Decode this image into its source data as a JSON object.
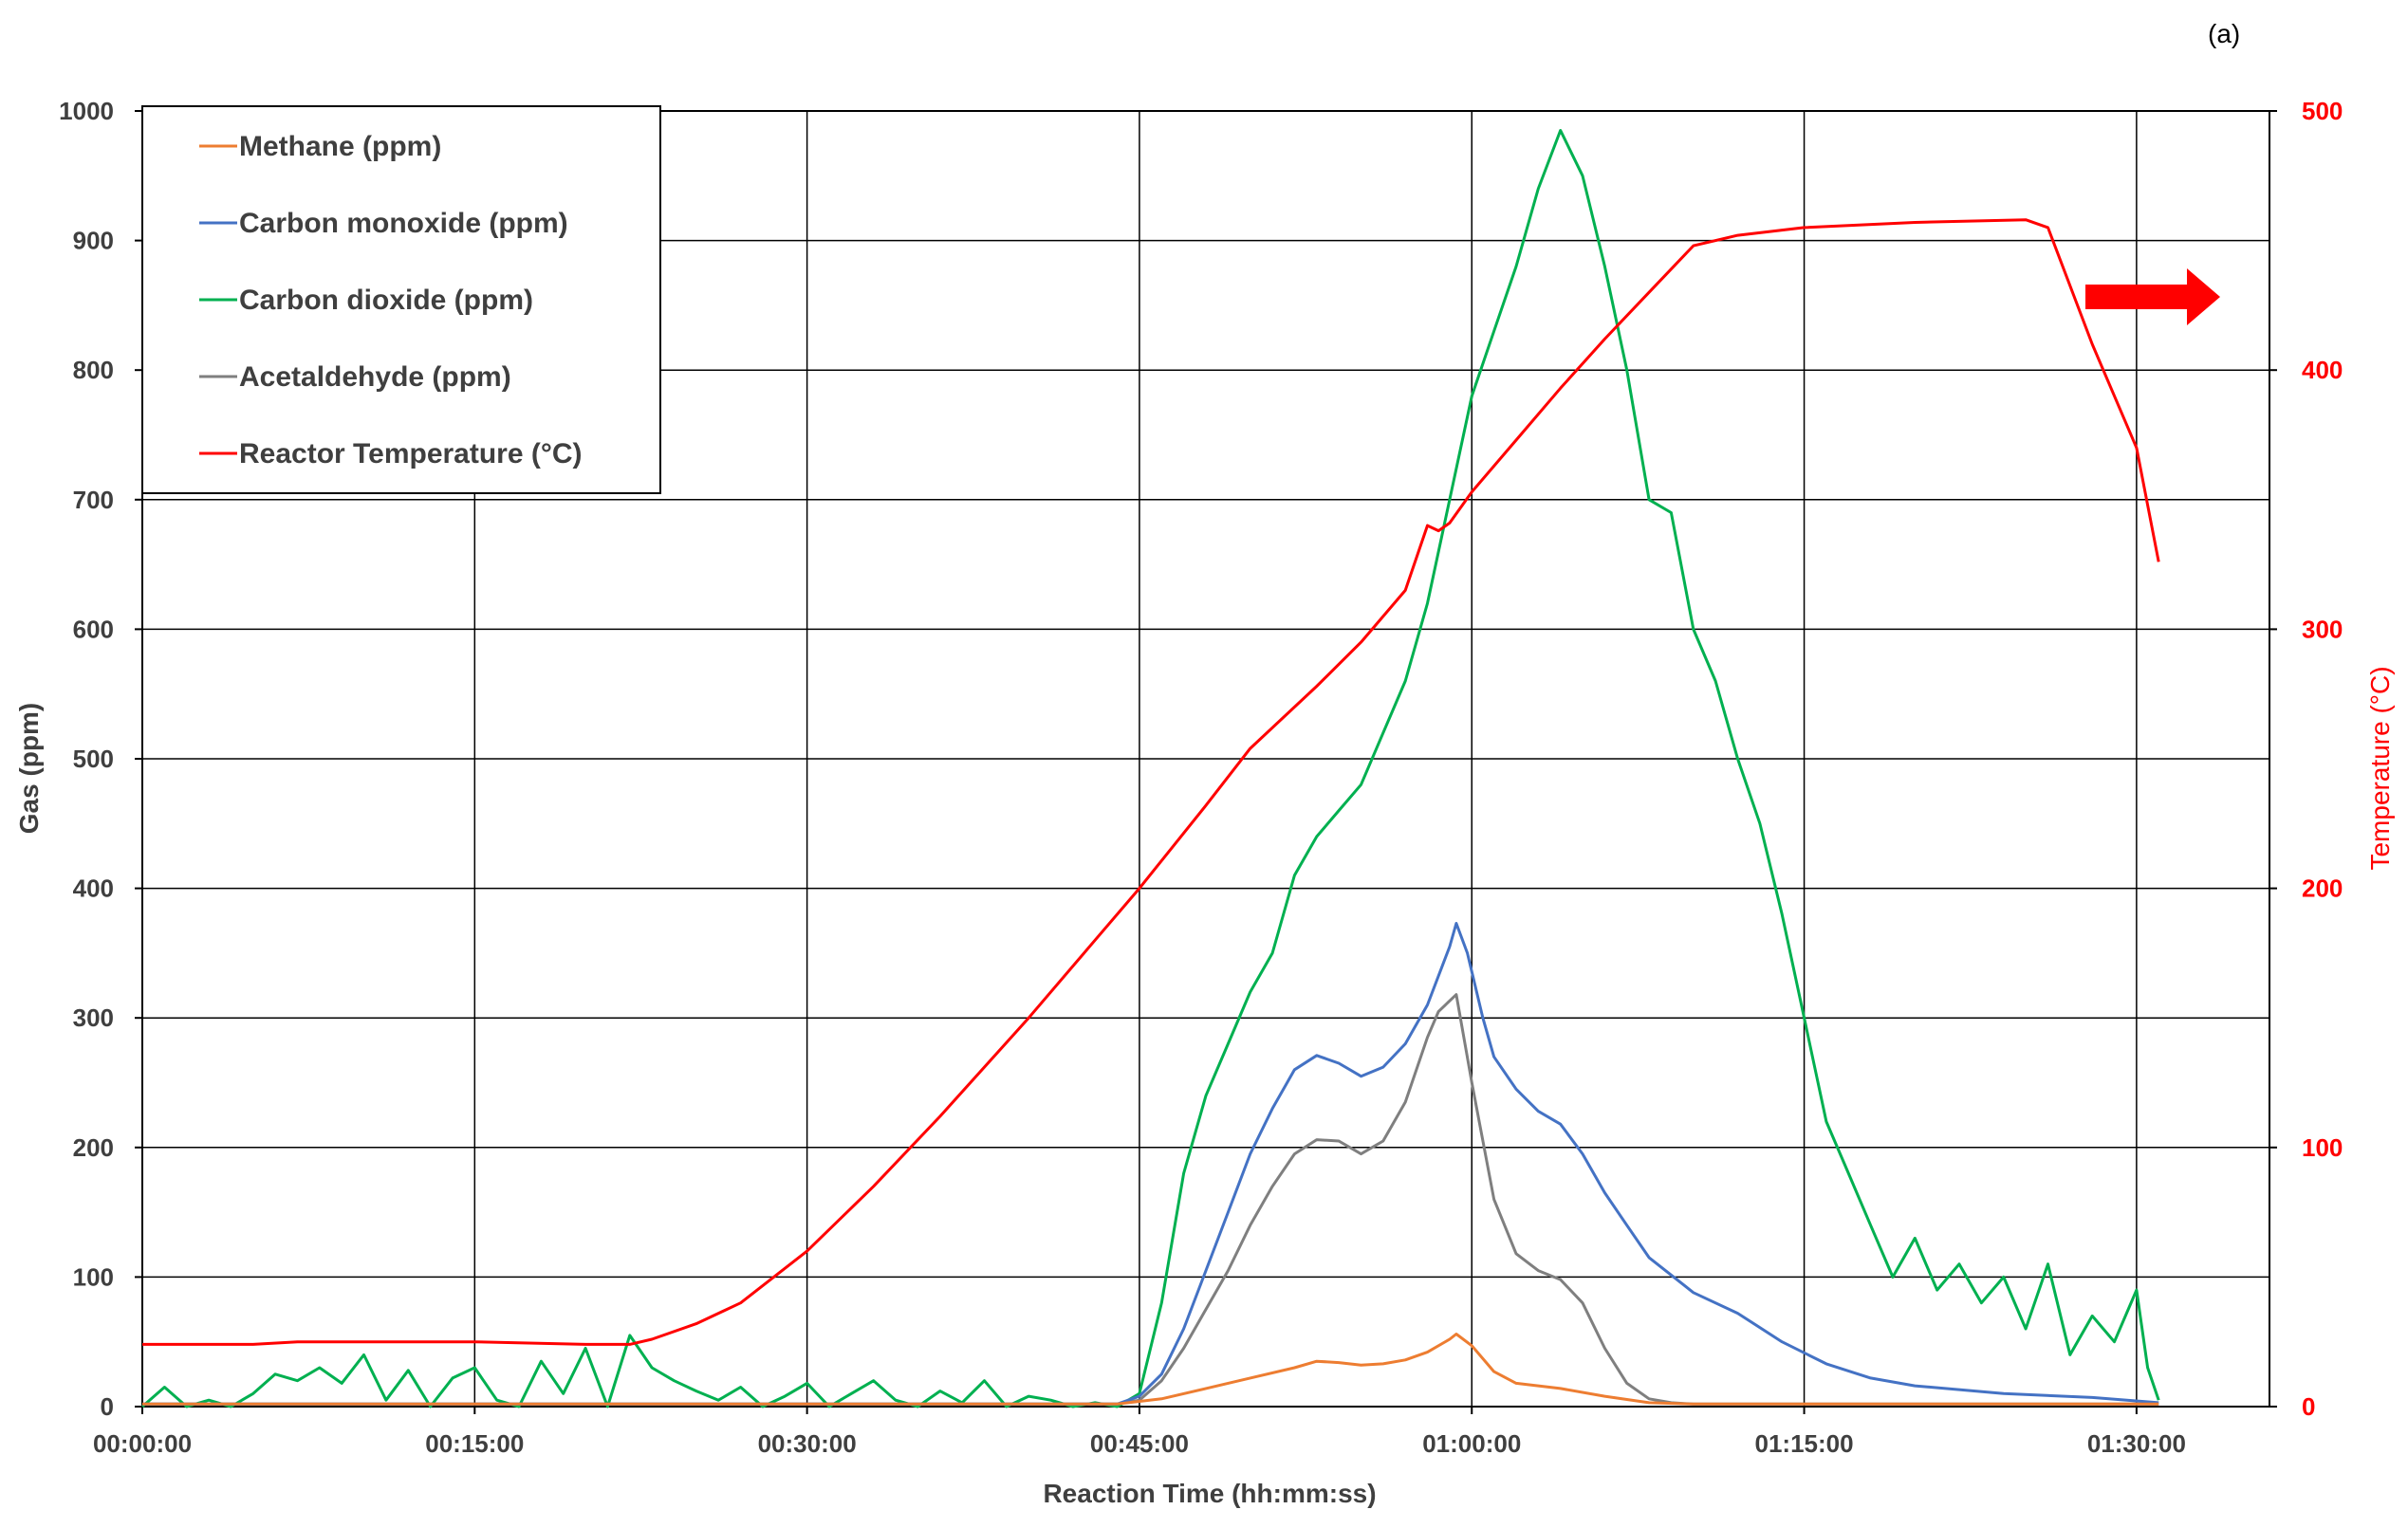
{
  "panel_label": "(a)",
  "chart_data": {
    "type": "line",
    "xlabel": "Reaction Time (hh:mm:ss)",
    "ylabel": "Gas (ppm)",
    "y2label": "Temperature (°C)",
    "x_unit": "minutes",
    "xlim": [
      0,
      96
    ],
    "ylim": [
      0,
      1000
    ],
    "y2lim": [
      0,
      500
    ],
    "x_ticks": [
      0,
      15,
      30,
      45,
      60,
      75,
      90
    ],
    "x_tick_labels": [
      "00:00:00",
      "00:15:00",
      "00:30:00",
      "00:45:00",
      "01:00:00",
      "01:15:00",
      "01:30:00"
    ],
    "y_ticks": [
      0,
      100,
      200,
      300,
      400,
      500,
      600,
      700,
      800,
      900,
      1000
    ],
    "y2_ticks": [
      0,
      100,
      200,
      300,
      400,
      500
    ],
    "grid": true,
    "legend_position": "top-left",
    "annotation_arrow": "right-arrow (points to temperature axis)",
    "series": [
      {
        "name": "Methane (ppm)",
        "axis": "left",
        "color": "#ed7d31",
        "x": [
          0,
          44,
          46,
          48,
          50,
          52,
          53,
          54,
          55,
          56,
          57,
          58,
          59,
          59.3,
          60,
          61,
          62,
          64,
          66,
          68,
          70,
          80,
          91
        ],
        "y": [
          2,
          2,
          6,
          14,
          22,
          30,
          35,
          34,
          32,
          33,
          36,
          42,
          52,
          56,
          47,
          27,
          18,
          14,
          8,
          3,
          2,
          2,
          2
        ]
      },
      {
        "name": "Carbon monoxide (ppm)",
        "axis": "left",
        "color": "#4472c4",
        "x": [
          0,
          44,
          45,
          46,
          47,
          48,
          49,
          50,
          51,
          52,
          53,
          54,
          55,
          56,
          57,
          58,
          59,
          59.3,
          59.8,
          60.5,
          61,
          62,
          63,
          64,
          65,
          66,
          67,
          68,
          70,
          72,
          74,
          76,
          78,
          80,
          84,
          88,
          91
        ],
        "y": [
          2,
          2,
          8,
          25,
          60,
          105,
          150,
          195,
          230,
          260,
          271,
          265,
          255,
          262,
          280,
          310,
          355,
          373,
          350,
          300,
          270,
          245,
          228,
          218,
          195,
          165,
          140,
          115,
          88,
          72,
          50,
          33,
          22,
          16,
          10,
          7,
          3
        ]
      },
      {
        "name": "Carbon dioxide (ppm)",
        "axis": "left",
        "color": "#00b050",
        "x": [
          0,
          1,
          2,
          3,
          4,
          5,
          6,
          7,
          8,
          9,
          10,
          11,
          12,
          13,
          14,
          15,
          16,
          17,
          18,
          19,
          20,
          21,
          22,
          23,
          24,
          25,
          26,
          27,
          28,
          29,
          30,
          31,
          32,
          33,
          34,
          35,
          36,
          37,
          38,
          39,
          40,
          41,
          42,
          43,
          44,
          45,
          46,
          47,
          48,
          49,
          50,
          51,
          52,
          53,
          54,
          55,
          56,
          57,
          58,
          59,
          60,
          61,
          62,
          63,
          64,
          65,
          66,
          67,
          68,
          69,
          70,
          71,
          72,
          73,
          74,
          75,
          76,
          77,
          78,
          79,
          80,
          81,
          82,
          83,
          84,
          85,
          86,
          87,
          88,
          89,
          90,
          90.5,
          91
        ],
        "y": [
          0,
          15,
          0,
          5,
          0,
          10,
          25,
          20,
          30,
          18,
          40,
          5,
          28,
          0,
          22,
          30,
          5,
          0,
          35,
          10,
          45,
          0,
          55,
          30,
          20,
          12,
          5,
          15,
          0,
          8,
          18,
          0,
          10,
          20,
          5,
          0,
          12,
          3,
          20,
          0,
          8,
          5,
          0,
          3,
          0,
          10,
          80,
          180,
          240,
          280,
          320,
          350,
          410,
          440,
          460,
          480,
          520,
          560,
          620,
          700,
          780,
          830,
          880,
          940,
          985,
          950,
          880,
          800,
          700,
          690,
          600,
          560,
          500,
          450,
          380,
          300,
          220,
          180,
          140,
          100,
          130,
          90,
          110,
          80,
          100,
          60,
          110,
          40,
          70,
          50,
          90,
          30,
          5
        ]
      },
      {
        "name": "Acetaldehyde (ppm)",
        "axis": "left",
        "color": "#7f7f7f",
        "x": [
          0,
          44,
          45,
          46,
          47,
          48,
          49,
          50,
          51,
          52,
          53,
          54,
          55,
          56,
          57,
          58,
          58.5,
          59.3,
          60,
          61,
          62,
          63,
          64,
          65,
          66,
          67,
          68,
          69,
          70,
          80,
          91
        ],
        "y": [
          2,
          2,
          5,
          20,
          45,
          75,
          105,
          140,
          170,
          195,
          206,
          205,
          195,
          205,
          235,
          285,
          305,
          318,
          250,
          160,
          118,
          105,
          98,
          80,
          45,
          18,
          6,
          3,
          2,
          2,
          2
        ]
      },
      {
        "name": "Reactor Temperature (°C)",
        "axis": "right",
        "color": "#ff0000",
        "x": [
          0,
          5,
          7,
          10,
          15,
          20,
          22,
          23,
          25,
          27,
          30,
          33,
          36,
          40,
          43,
          45,
          48,
          50,
          53,
          55,
          57,
          58,
          58.5,
          59,
          60,
          62,
          64,
          66,
          68,
          70,
          72,
          75,
          80,
          85,
          86,
          88,
          90,
          91
        ],
        "y": [
          24,
          24,
          25,
          25,
          25,
          24,
          24,
          26,
          32,
          40,
          60,
          85,
          112,
          150,
          180,
          200,
          232,
          254,
          278,
          295,
          315,
          340,
          338,
          341,
          353,
          373,
          393,
          412,
          430,
          448,
          452,
          455,
          457,
          458,
          455,
          410,
          370,
          326
        ]
      }
    ]
  }
}
